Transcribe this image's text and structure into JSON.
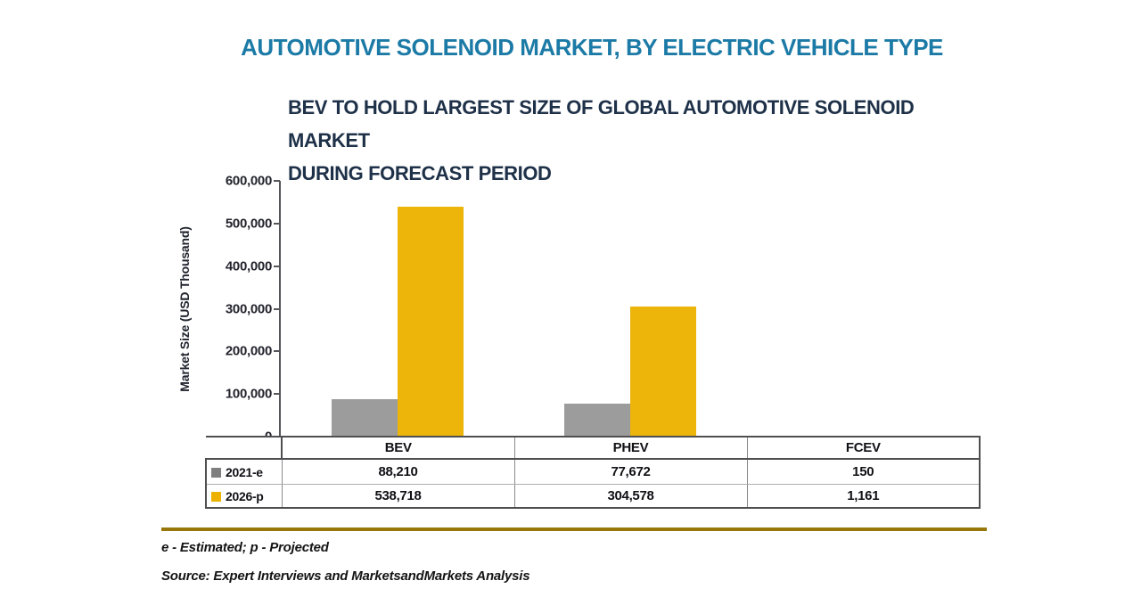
{
  "title": "AUTOMOTIVE SOLENOID MARKET, BY ELECTRIC VEHICLE TYPE",
  "subtitle": {
    "line1": "BEV TO HOLD LARGEST SIZE OF GLOBAL AUTOMOTIVE SOLENOID MARKET",
    "line2": "DURING FORECAST PERIOD"
  },
  "chart_data": {
    "type": "bar",
    "title": "AUTOMOTIVE SOLENOID MARKET, BY ELECTRIC VEHICLE TYPE",
    "subtitle": "BEV TO HOLD LARGEST SIZE OF GLOBAL AUTOMOTIVE SOLENOID MARKET DURING FORECAST PERIOD",
    "categories": [
      "BEV",
      "PHEV",
      "FCEV"
    ],
    "series": [
      {
        "name": "2021-e",
        "color": "#9C9C9C",
        "values": [
          88210,
          77672,
          150
        ]
      },
      {
        "name": "2026-p",
        "color": "#EDB409",
        "values": [
          538718,
          304578,
          1161
        ]
      }
    ],
    "xlabel": "",
    "ylabel": "Market Size (USD Thousand)",
    "ylim": [
      0,
      600000
    ],
    "ytick_labels": [
      "600,000",
      "500,000",
      "400,000",
      "300,000",
      "200,000",
      "100,000",
      "0"
    ],
    "grid": false,
    "legend_position": "table-rows-left"
  },
  "table": {
    "column_headers": [
      "BEV",
      "PHEV",
      "FCEV"
    ],
    "rows": [
      {
        "label": "2021-e",
        "swatch_color": "#7F7F7F",
        "values": [
          "88,210",
          "77,672",
          "150"
        ]
      },
      {
        "label": "2026-p",
        "swatch_color": "#EDB200",
        "values": [
          "538,718",
          "304,578",
          "1,161"
        ]
      }
    ]
  },
  "footnote": "e - Estimated; p - Projected",
  "source": "Source: Expert Interviews and MarketsandMarkets Analysis",
  "colors": {
    "title_text": "#1B7AA6",
    "subtitle_text": "#1E3148",
    "divider_line": "#97770C"
  }
}
